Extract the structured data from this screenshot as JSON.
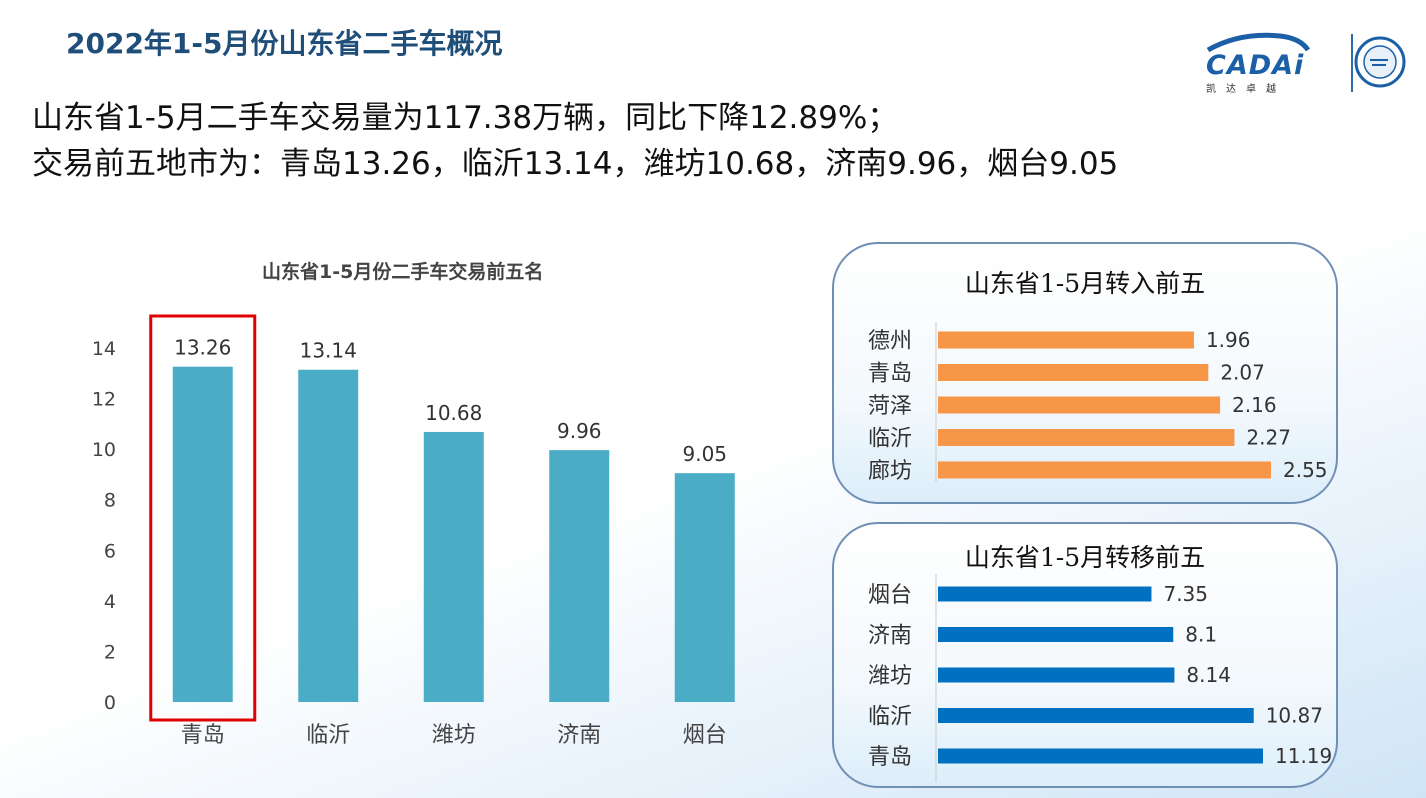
{
  "page": {
    "title": "2022年1-5月份山东省二手车概况",
    "summary_line1": "山东省1-5月二手车交易量为117.38万辆，同比下降12.89%；",
    "summary_line2": "交易前五地市为：青岛13.26，临沂13.14，潍坊10.68，济南9.96，烟台9.05"
  },
  "logo": {
    "brand": "CADAi",
    "subtitle": "凯达卓越"
  },
  "colors": {
    "title": "#1f4e79",
    "bar_main": "#4bacc6",
    "bar_in": "#f79646",
    "bar_out": "#0070c0",
    "highlight": "#e00000"
  },
  "chart_data": [
    {
      "type": "bar",
      "title": "山东省1-5月份二手车交易前五名",
      "categories": [
        "青岛",
        "临沂",
        "潍坊",
        "济南",
        "烟台"
      ],
      "values": [
        13.26,
        13.14,
        10.68,
        9.96,
        9.05
      ],
      "value_labels": [
        "13.26",
        "13.14",
        "10.68",
        "9.96",
        "9.05"
      ],
      "yticks": [
        0,
        2,
        4,
        6,
        8,
        10,
        12,
        14
      ],
      "ylim": [
        0,
        14
      ],
      "highlighted_category": "青岛"
    },
    {
      "type": "bar",
      "orientation": "horizontal",
      "title": "山东省1-5月转入前五",
      "categories": [
        "德州",
        "青岛",
        "菏泽",
        "临沂",
        "廊坊"
      ],
      "values": [
        1.96,
        2.07,
        2.16,
        2.27,
        2.55
      ],
      "value_labels": [
        "1.96",
        "2.07",
        "2.16",
        "2.27",
        "2.55"
      ],
      "xlim": [
        0,
        2.55
      ]
    },
    {
      "type": "bar",
      "orientation": "horizontal",
      "title": "山东省1-5月转移前五",
      "categories": [
        "烟台",
        "济南",
        "潍坊",
        "临沂",
        "青岛"
      ],
      "values": [
        7.35,
        8.1,
        8.14,
        10.87,
        11.19
      ],
      "value_labels": [
        "7.35",
        "8.1",
        "8.14",
        "10.87",
        "11.19"
      ],
      "xlim": [
        0,
        11.19
      ]
    }
  ]
}
